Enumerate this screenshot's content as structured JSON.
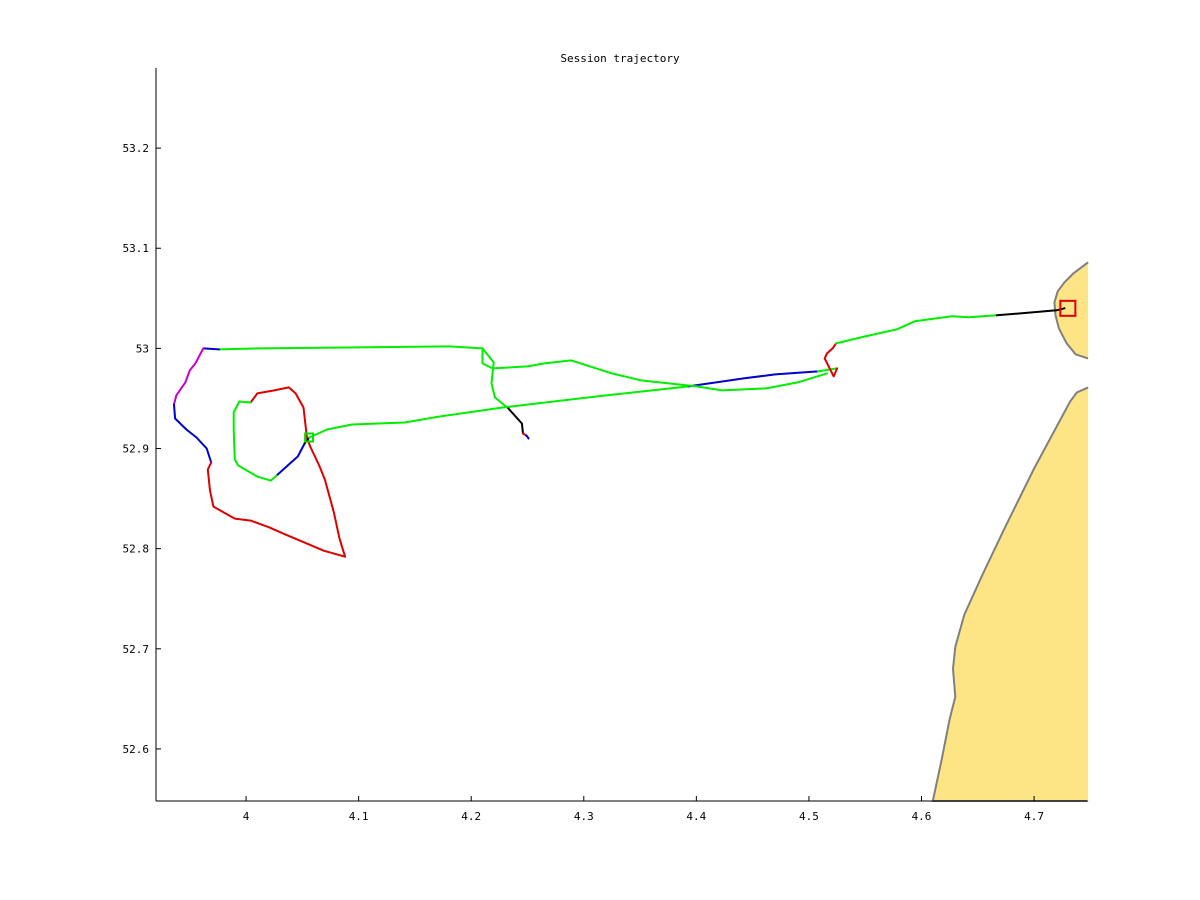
{
  "title": "Session trajectory",
  "chart_data": {
    "type": "line",
    "title": "Session trajectory",
    "xlabel": "",
    "ylabel": "",
    "xlim": [
      3.92,
      4.747
    ],
    "ylim": [
      52.548,
      53.28
    ],
    "xticks": [
      "4",
      "4.1",
      "4.2",
      "4.3",
      "4.4",
      "4.5",
      "4.6",
      "4.7"
    ],
    "xtick_values": [
      4.0,
      4.1,
      4.2,
      4.3,
      4.4,
      4.5,
      4.6,
      4.7
    ],
    "yticks": [
      "52.6",
      "52.7",
      "52.8",
      "52.9",
      "53",
      "53.1",
      "53.2"
    ],
    "ytick_values": [
      52.6,
      52.7,
      52.8,
      52.9,
      53.0,
      53.1,
      53.2
    ],
    "grid": false,
    "land_color": "#fde485",
    "coast_color": "#808080",
    "land": [
      {
        "name": "island-north",
        "points": [
          [
            4.748,
            53.086
          ],
          [
            4.735,
            53.075
          ],
          [
            4.727,
            53.066
          ],
          [
            4.721,
            53.057
          ],
          [
            4.718,
            53.046
          ],
          [
            4.719,
            53.033
          ],
          [
            4.722,
            53.02
          ],
          [
            4.729,
            53.005
          ],
          [
            4.737,
            52.994
          ],
          [
            4.748,
            52.99
          ]
        ]
      },
      {
        "name": "mainland",
        "points": [
          [
            4.748,
            52.961
          ],
          [
            4.738,
            52.956
          ],
          [
            4.732,
            52.947
          ],
          [
            4.7,
            52.88
          ],
          [
            4.675,
            52.823
          ],
          [
            4.655,
            52.776
          ],
          [
            4.638,
            52.734
          ],
          [
            4.63,
            52.702
          ],
          [
            4.628,
            52.68
          ],
          [
            4.63,
            52.652
          ],
          [
            4.625,
            52.63
          ],
          [
            4.618,
            52.59
          ],
          [
            4.61,
            52.548
          ],
          [
            4.748,
            52.548
          ]
        ]
      }
    ],
    "series": [
      {
        "color": "#00ee00",
        "points": [
          [
            4.21,
            53.0
          ],
          [
            4.18,
            53.002
          ],
          [
            4.1,
            53.001
          ],
          [
            4.012,
            53.0
          ],
          [
            3.976,
            52.999
          ]
        ]
      },
      {
        "color": "#0000cc",
        "points": [
          [
            3.976,
            52.999
          ],
          [
            3.962,
            53.0
          ]
        ]
      },
      {
        "color": "#cc00cc",
        "points": [
          [
            3.962,
            53.0
          ],
          [
            3.955,
            52.985
          ],
          [
            3.95,
            52.978
          ],
          [
            3.946,
            52.966
          ],
          [
            3.938,
            52.953
          ],
          [
            3.936,
            52.944
          ]
        ]
      },
      {
        "color": "#0000cc",
        "points": [
          [
            3.936,
            52.944
          ],
          [
            3.937,
            52.93
          ],
          [
            3.947,
            52.919
          ],
          [
            3.956,
            52.911
          ],
          [
            3.965,
            52.9
          ],
          [
            3.969,
            52.886
          ]
        ]
      },
      {
        "color": "#dd0000",
        "points": [
          [
            3.969,
            52.886
          ],
          [
            3.966,
            52.879
          ],
          [
            3.968,
            52.858
          ],
          [
            3.971,
            52.842
          ],
          [
            3.99,
            52.83
          ],
          [
            4.004,
            52.828
          ],
          [
            4.021,
            52.821
          ],
          [
            4.035,
            52.814
          ],
          [
            4.052,
            52.806
          ],
          [
            4.069,
            52.798
          ],
          [
            4.088,
            52.792
          ],
          [
            4.083,
            52.81
          ],
          [
            4.078,
            52.836
          ],
          [
            4.07,
            52.869
          ],
          [
            4.065,
            52.883
          ],
          [
            4.057,
            52.902
          ],
          [
            4.054,
            52.911
          ],
          [
            4.051,
            52.941
          ],
          [
            4.044,
            52.955
          ],
          [
            4.038,
            52.961
          ],
          [
            4.025,
            52.958
          ],
          [
            4.01,
            52.955
          ],
          [
            4.004,
            52.946
          ]
        ]
      },
      {
        "color": "#00ee00",
        "points": [
          [
            4.004,
            52.946
          ],
          [
            3.994,
            52.947
          ],
          [
            3.989,
            52.936
          ],
          [
            3.989,
            52.919
          ],
          [
            3.99,
            52.889
          ],
          [
            3.993,
            52.883
          ],
          [
            4.01,
            52.872
          ],
          [
            4.022,
            52.868
          ],
          [
            4.028,
            52.874
          ]
        ]
      },
      {
        "color": "#0000cc",
        "points": [
          [
            4.028,
            52.874
          ],
          [
            4.038,
            52.884
          ],
          [
            4.046,
            52.892
          ],
          [
            4.052,
            52.905
          ]
        ]
      },
      {
        "color": "#000000",
        "points": [
          [
            4.052,
            52.905
          ],
          [
            4.056,
            52.911
          ]
        ]
      },
      {
        "color": "#00ee00",
        "points": [
          [
            4.056,
            52.911
          ],
          [
            4.072,
            52.919
          ],
          [
            4.094,
            52.924
          ],
          [
            4.141,
            52.926
          ],
          [
            4.172,
            52.932
          ],
          [
            4.228,
            52.941
          ],
          [
            4.312,
            52.952
          ],
          [
            4.393,
            52.962
          ]
        ]
      },
      {
        "color": "#0000cc",
        "points": [
          [
            4.393,
            52.962
          ],
          [
            4.442,
            52.97
          ],
          [
            4.47,
            52.974
          ],
          [
            4.508,
            52.977
          ]
        ]
      },
      {
        "color": "#00ee00",
        "points": [
          [
            4.508,
            52.977
          ],
          [
            4.525,
            52.98
          ]
        ]
      },
      {
        "color": "#dd0000",
        "points": [
          [
            4.525,
            52.98
          ],
          [
            4.522,
            52.972
          ],
          [
            4.514,
            52.99
          ],
          [
            4.516,
            52.995
          ],
          [
            4.521,
            53.0
          ],
          [
            4.524,
            53.005
          ]
        ]
      },
      {
        "color": "#00ee00",
        "points": [
          [
            4.524,
            53.005
          ],
          [
            4.55,
            53.012
          ],
          [
            4.578,
            53.019
          ],
          [
            4.594,
            53.027
          ],
          [
            4.627,
            53.032
          ],
          [
            4.642,
            53.031
          ],
          [
            4.667,
            53.033
          ]
        ]
      },
      {
        "color": "#000000",
        "points": [
          [
            4.667,
            53.033
          ],
          [
            4.72,
            53.038
          ],
          [
            4.727,
            53.04
          ]
        ]
      },
      {
        "color": "#00ee00",
        "points": [
          [
            4.21,
            53.0
          ],
          [
            4.21,
            52.985
          ],
          [
            4.219,
            52.98
          ],
          [
            4.25,
            52.982
          ],
          [
            4.265,
            52.985
          ],
          [
            4.289,
            52.988
          ],
          [
            4.325,
            52.975
          ],
          [
            4.351,
            52.968
          ],
          [
            4.4,
            52.962
          ],
          [
            4.423,
            52.958
          ],
          [
            4.462,
            52.96
          ],
          [
            4.49,
            52.966
          ],
          [
            4.516,
            52.975
          ]
        ]
      },
      {
        "color": "#00ee00",
        "points": [
          [
            4.21,
            53.0
          ],
          [
            4.22,
            52.986
          ],
          [
            4.218,
            52.965
          ],
          [
            4.221,
            52.951
          ],
          [
            4.233,
            52.94
          ]
        ]
      },
      {
        "color": "#000000",
        "points": [
          [
            4.233,
            52.94
          ],
          [
            4.245,
            52.925
          ],
          [
            4.246,
            52.915
          ]
        ]
      },
      {
        "color": "#dd0000",
        "points": [
          [
            4.246,
            52.915
          ],
          [
            4.249,
            52.913
          ]
        ]
      },
      {
        "color": "#0000cc",
        "points": [
          [
            4.249,
            52.913
          ],
          [
            4.251,
            52.91
          ]
        ]
      }
    ],
    "markers": [
      {
        "shape": "square",
        "color": "#00dd00",
        "x": 4.056,
        "y": 52.911
      },
      {
        "shape": "square",
        "color": "#dd0000",
        "x": 4.73,
        "y": 53.04
      }
    ]
  }
}
